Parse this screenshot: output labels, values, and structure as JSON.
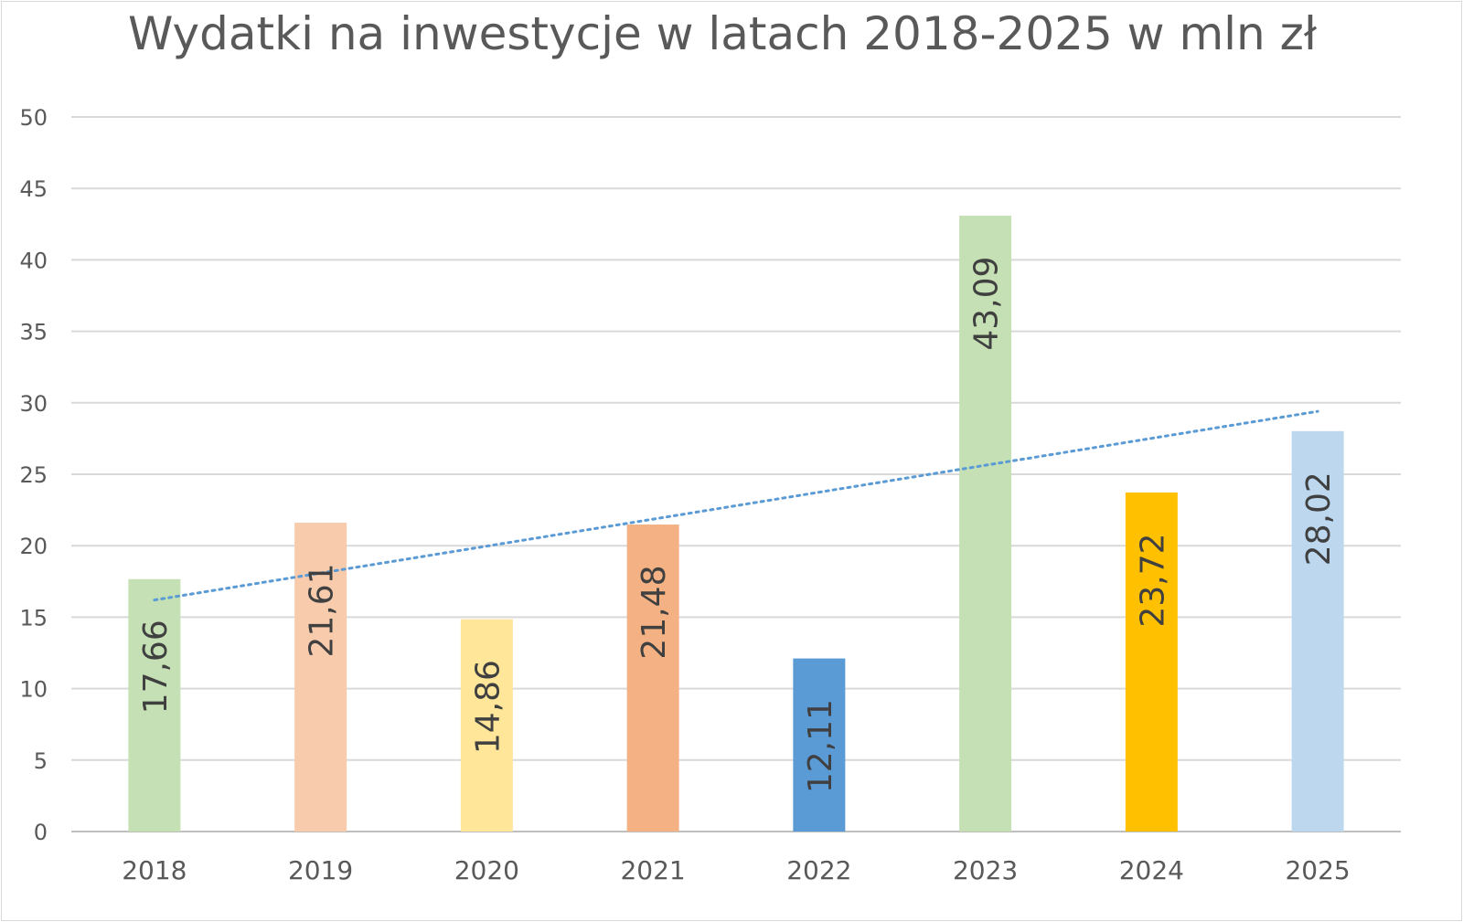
{
  "chart_data": {
    "type": "bar",
    "title": "Wydatki na inwestycje w latach 2018-2025 w mln zł",
    "categories": [
      "2018",
      "2019",
      "2020",
      "2021",
      "2022",
      "2023",
      "2024",
      "2025"
    ],
    "values": [
      17.66,
      21.61,
      14.86,
      21.48,
      12.11,
      43.09,
      23.72,
      28.02
    ],
    "value_labels": [
      "17,66",
      "21,61",
      "14,86",
      "21,48",
      "12,11",
      "43,09",
      "23,72",
      "28,02"
    ],
    "bar_colors": [
      "#c5e0b4",
      "#f8cbad",
      "#ffe699",
      "#f4b183",
      "#5b9bd5",
      "#c5e0b4",
      "#ffc000",
      "#bdd7ee"
    ],
    "yticks": [
      "0",
      "5",
      "10",
      "15",
      "20",
      "25",
      "30",
      "35",
      "40",
      "45",
      "50"
    ],
    "ylim": [
      0,
      50
    ],
    "grid": true,
    "trendline": {
      "type": "linear",
      "style": "dotted",
      "color": "#5b9bd5",
      "start": 16.2,
      "end": 29.4
    },
    "xlabel": "",
    "ylabel": ""
  }
}
